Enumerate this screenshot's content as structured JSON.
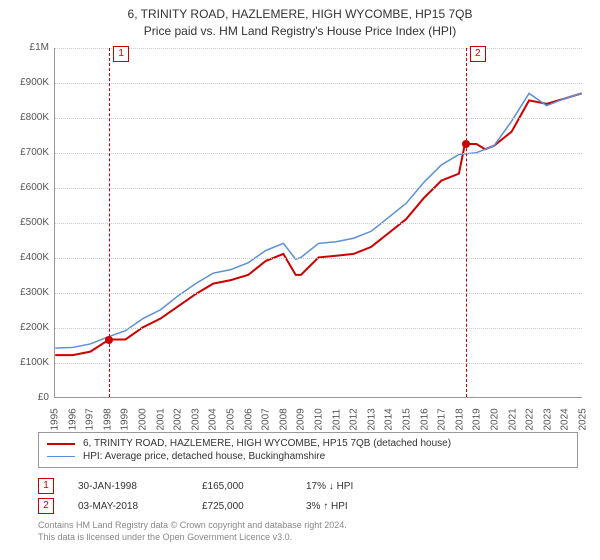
{
  "title": {
    "line1": "6, TRINITY ROAD, HAZLEMERE, HIGH WYCOMBE, HP15 7QB",
    "line2": "Price paid vs. HM Land Registry's House Price Index (HPI)",
    "fontsize": 12
  },
  "chart": {
    "type": "line",
    "background_color": "#ffffff",
    "grid_color": "#cccccc",
    "axis_color": "#999999",
    "xlim": [
      1995,
      2025
    ],
    "ylim": [
      0,
      1000000
    ],
    "ytick_step": 100000,
    "yticks": [
      "£0",
      "£100K",
      "£200K",
      "£300K",
      "£400K",
      "£500K",
      "£600K",
      "£700K",
      "£800K",
      "£900K",
      "£1M"
    ],
    "xticks": [
      1995,
      1996,
      1997,
      1998,
      1999,
      2000,
      2001,
      2002,
      2003,
      2004,
      2005,
      2006,
      2007,
      2008,
      2009,
      2010,
      2011,
      2012,
      2013,
      2014,
      2015,
      2016,
      2017,
      2018,
      2019,
      2020,
      2021,
      2022,
      2023,
      2024,
      2025
    ],
    "series": [
      {
        "name": "property",
        "label": "6, TRINITY ROAD, HAZLEMERE, HIGH WYCOMBE, HP15 7QB (detached house)",
        "color": "#cc0000",
        "width": 2,
        "data": [
          [
            1995,
            120000
          ],
          [
            1996,
            120000
          ],
          [
            1997,
            130000
          ],
          [
            1998.08,
            165000
          ],
          [
            1999,
            165000
          ],
          [
            2000,
            200000
          ],
          [
            2001,
            225000
          ],
          [
            2002,
            260000
          ],
          [
            2003,
            295000
          ],
          [
            2004,
            325000
          ],
          [
            2005,
            335000
          ],
          [
            2006,
            350000
          ],
          [
            2007,
            390000
          ],
          [
            2008,
            410000
          ],
          [
            2008.7,
            350000
          ],
          [
            2009,
            350000
          ],
          [
            2010,
            400000
          ],
          [
            2011,
            405000
          ],
          [
            2012,
            410000
          ],
          [
            2013,
            430000
          ],
          [
            2014,
            470000
          ],
          [
            2015,
            510000
          ],
          [
            2016,
            570000
          ],
          [
            2017,
            620000
          ],
          [
            2018,
            640000
          ],
          [
            2018.34,
            725000
          ],
          [
            2018.8,
            725000
          ],
          [
            2019,
            725000
          ],
          [
            2019.5,
            710000
          ],
          [
            2020,
            720000
          ],
          [
            2021,
            760000
          ],
          [
            2022,
            850000
          ],
          [
            2023,
            840000
          ],
          [
            2024,
            855000
          ],
          [
            2025,
            870000
          ]
        ]
      },
      {
        "name": "hpi",
        "label": "HPI: Average price, detached house, Buckinghamshire",
        "color": "#5b8fd6",
        "width": 1.5,
        "data": [
          [
            1995,
            140000
          ],
          [
            1996,
            142000
          ],
          [
            1997,
            152000
          ],
          [
            1998,
            172000
          ],
          [
            1999,
            190000
          ],
          [
            2000,
            225000
          ],
          [
            2001,
            250000
          ],
          [
            2002,
            290000
          ],
          [
            2003,
            325000
          ],
          [
            2004,
            355000
          ],
          [
            2005,
            365000
          ],
          [
            2006,
            385000
          ],
          [
            2007,
            420000
          ],
          [
            2008,
            440000
          ],
          [
            2008.7,
            395000
          ],
          [
            2009,
            400000
          ],
          [
            2010,
            440000
          ],
          [
            2011,
            445000
          ],
          [
            2012,
            455000
          ],
          [
            2013,
            475000
          ],
          [
            2014,
            515000
          ],
          [
            2015,
            555000
          ],
          [
            2016,
            615000
          ],
          [
            2017,
            665000
          ],
          [
            2018,
            695000
          ],
          [
            2019,
            700000
          ],
          [
            2020,
            720000
          ],
          [
            2021,
            790000
          ],
          [
            2022,
            870000
          ],
          [
            2023,
            835000
          ],
          [
            2024,
            855000
          ],
          [
            2025,
            870000
          ]
        ]
      }
    ],
    "markers": [
      {
        "n": "1",
        "x": 1998.08,
        "y": 165000
      },
      {
        "n": "2",
        "x": 2018.34,
        "y": 725000
      }
    ]
  },
  "sales": [
    {
      "n": "1",
      "date": "30-JAN-1998",
      "price": "£165,000",
      "diff": "17% ↓ HPI"
    },
    {
      "n": "2",
      "date": "03-MAY-2018",
      "price": "£725,000",
      "diff": "3% ↑ HPI"
    }
  ],
  "footer": {
    "line1": "Contains HM Land Registry data © Crown copyright and database right 2024.",
    "line2": "This data is licensed under the Open Government Licence v3.0."
  }
}
